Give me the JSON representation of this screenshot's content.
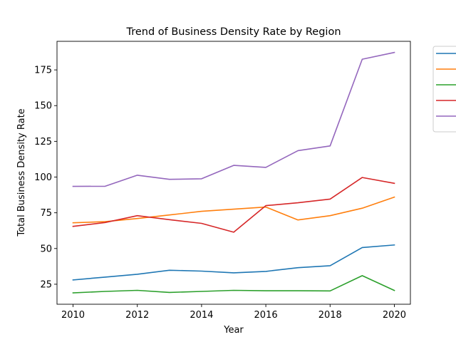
{
  "chart_data": {
    "type": "line",
    "title": "Trend of Business Density Rate by Region",
    "xlabel": "Year",
    "ylabel": "Total Business Density Rate",
    "x": [
      2010,
      2011,
      2012,
      2013,
      2014,
      2015,
      2016,
      2017,
      2018,
      2019,
      2020
    ],
    "xlim": [
      2009.5,
      2020.5
    ],
    "ylim": [
      11,
      195
    ],
    "xticks": [
      2010,
      2012,
      2014,
      2016,
      2018,
      2020
    ],
    "yticks": [
      25,
      50,
      75,
      100,
      125,
      150,
      175
    ],
    "grid": false,
    "legend_placement": "outside-right",
    "series": [
      {
        "color": "#1f77b4",
        "values": [
          28,
          30,
          32,
          34.8,
          34.2,
          33,
          34,
          36.6,
          38,
          50.7,
          52.5
        ]
      },
      {
        "color": "#ff7f0e",
        "values": [
          68,
          68.8,
          71,
          73.5,
          76,
          77.5,
          79,
          70,
          73,
          78.2,
          86
        ]
      },
      {
        "color": "#2ca02c",
        "values": [
          19,
          20,
          20.7,
          19.3,
          20,
          20.7,
          20.4,
          20.4,
          20.3,
          31,
          20.6
        ]
      },
      {
        "color": "#d62728",
        "values": [
          65.5,
          68.2,
          73,
          70.2,
          67.6,
          61.4,
          80,
          82,
          84.6,
          99.7,
          95.6
        ]
      },
      {
        "color": "#9467bd",
        "values": [
          93.5,
          93.6,
          101.3,
          98.4,
          98.8,
          108.2,
          106.8,
          118.5,
          121.8,
          182.5,
          187.2
        ]
      }
    ]
  }
}
